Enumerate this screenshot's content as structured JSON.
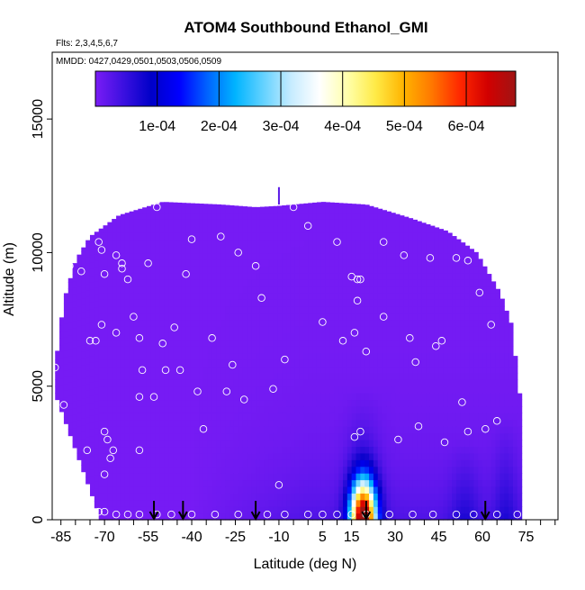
{
  "chart_data": {
    "type": "heatmap",
    "title": "ATOM4 Southbound Ethanol_GMI",
    "annotations": {
      "flights": "Flts: 2,3,4,5,6,7",
      "dates": "MMDD: 0427,0429,0501,0503,0506,0509"
    },
    "xlabel": "Latitude (deg N)",
    "ylabel": "Altitude (m)",
    "xlim": [
      -88,
      86
    ],
    "ylim": [
      0,
      17500
    ],
    "xticks": [
      -85,
      -70,
      -55,
      -40,
      -25,
      -10,
      5,
      15,
      30,
      45,
      60,
      75
    ],
    "xticklabels": [
      "-85",
      "-70",
      "-55",
      "-40",
      "-25",
      "-10",
      "5",
      "15",
      "30",
      "45",
      "60",
      "75"
    ],
    "yticks": [
      0,
      5000,
      10000,
      15000
    ],
    "yticklabels": [
      "0",
      "5000",
      "10000",
      "15000"
    ],
    "colorbar": {
      "range": [
        0,
        0.00068
      ],
      "ticks": [
        0.0001,
        0.0002,
        0.0003,
        0.0004,
        0.0005,
        0.0006
      ],
      "ticklabels": [
        "1e-04",
        "2e-04",
        "3e-04",
        "4e-04",
        "5e-04",
        "6e-04"
      ],
      "colors": [
        "#7a1cf5",
        "#3b10e0",
        "#0000c8",
        "#0000ff",
        "#0064ff",
        "#00b4ff",
        "#64d2ff",
        "#c8ecff",
        "#ffffff",
        "#ffffaa",
        "#ffea46",
        "#ffb400",
        "#ff7800",
        "#ff2800",
        "#d20000",
        "#a01414"
      ]
    },
    "domain": {
      "lat_min": -87,
      "lat_max": 73,
      "top_profile": [
        [
          -87,
          5700
        ],
        [
          -84,
          8200
        ],
        [
          -80,
          9700
        ],
        [
          -75,
          10600
        ],
        [
          -65,
          11400
        ],
        [
          -50,
          11900
        ],
        [
          -30,
          11800
        ],
        [
          -18,
          11700
        ],
        [
          -10,
          11750
        ],
        [
          5,
          11900
        ],
        [
          20,
          11800
        ],
        [
          35,
          11300
        ],
        [
          48,
          10800
        ],
        [
          58,
          10000
        ],
        [
          66,
          8500
        ],
        [
          70,
          7300
        ],
        [
          73,
          4500
        ]
      ],
      "bottom_lat_range": [
        -72,
        73
      ]
    },
    "hotspot": {
      "lat": 19,
      "alt": 0,
      "peak": 0.00068
    },
    "plumes": [
      {
        "lat": 19,
        "alt_top": 5000,
        "width": 12,
        "value": 5e-05
      },
      {
        "lat": 54,
        "alt_top": 3000,
        "width": 10,
        "value": 4e-05
      },
      {
        "lat": 68,
        "alt_top": 4000,
        "width": 8,
        "value": 4e-05
      }
    ],
    "background_value": 3e-06,
    "observations": [
      [
        -87,
        5700
      ],
      [
        -84,
        4300
      ],
      [
        -82,
        9500
      ],
      [
        -78,
        9300
      ],
      [
        -76,
        2600
      ],
      [
        -75,
        6700
      ],
      [
        -72,
        10400
      ],
      [
        -73,
        6700
      ],
      [
        -71,
        10100
      ],
      [
        -70,
        9200
      ],
      [
        -69,
        11400
      ],
      [
        -71,
        7300
      ],
      [
        -70,
        3300
      ],
      [
        -70,
        1700
      ],
      [
        -69,
        3000
      ],
      [
        -68,
        2300
      ],
      [
        -67,
        2600
      ],
      [
        -66,
        9900
      ],
      [
        -64,
        9600
      ],
      [
        -64,
        9400
      ],
      [
        -62,
        9000
      ],
      [
        -66,
        7000
      ],
      [
        -60,
        7600
      ],
      [
        -58,
        6800
      ],
      [
        -58,
        4600
      ],
      [
        -57,
        5600
      ],
      [
        -58,
        2600
      ],
      [
        -55,
        9600
      ],
      [
        -52,
        11700
      ],
      [
        -53,
        4600
      ],
      [
        -50,
        6600
      ],
      [
        -49,
        5600
      ],
      [
        -46,
        7200
      ],
      [
        -44,
        5600
      ],
      [
        -42,
        9200
      ],
      [
        -40,
        10500
      ],
      [
        -38,
        4800
      ],
      [
        -36,
        3400
      ],
      [
        -33,
        6800
      ],
      [
        -30,
        10600
      ],
      [
        -28,
        4800
      ],
      [
        -26,
        5800
      ],
      [
        -24,
        10000
      ],
      [
        -22,
        4500
      ],
      [
        -18,
        9500
      ],
      [
        -16,
        8300
      ],
      [
        -12,
        4900
      ],
      [
        -10,
        1300
      ],
      [
        -8,
        6000
      ],
      [
        -5,
        11700
      ],
      [
        0,
        11000
      ],
      [
        5,
        7400
      ],
      [
        10,
        10400
      ],
      [
        12,
        6700
      ],
      [
        15,
        9100
      ],
      [
        16,
        7000
      ],
      [
        17,
        9000
      ],
      [
        17,
        8200
      ],
      [
        18,
        9000
      ],
      [
        18,
        3300
      ],
      [
        16,
        3100
      ],
      [
        20,
        6300
      ],
      [
        26,
        7600
      ],
      [
        26,
        10400
      ],
      [
        29,
        11700
      ],
      [
        31,
        3000
      ],
      [
        33,
        9900
      ],
      [
        35,
        6800
      ],
      [
        37,
        5900
      ],
      [
        38,
        3500
      ],
      [
        42,
        9800
      ],
      [
        44,
        6500
      ],
      [
        46,
        6700
      ],
      [
        47,
        2900
      ],
      [
        51,
        9800
      ],
      [
        53,
        4400
      ],
      [
        55,
        9700
      ],
      [
        55,
        3300
      ],
      [
        59,
        8500
      ],
      [
        61,
        3400
      ],
      [
        63,
        7300
      ],
      [
        65,
        3700
      ],
      [
        -72,
        300
      ],
      [
        -70,
        300
      ],
      [
        -66,
        200
      ],
      [
        -62,
        200
      ],
      [
        -58,
        200
      ],
      [
        -52,
        200
      ],
      [
        -47,
        200
      ],
      [
        -40,
        200
      ],
      [
        -32,
        200
      ],
      [
        -24,
        200
      ],
      [
        -14,
        200
      ],
      [
        -8,
        200
      ],
      [
        0,
        200
      ],
      [
        5,
        200
      ],
      [
        10,
        200
      ],
      [
        15,
        200
      ],
      [
        20,
        200
      ],
      [
        28,
        200
      ],
      [
        36,
        200
      ],
      [
        43,
        200
      ],
      [
        51,
        200
      ],
      [
        57,
        200
      ],
      [
        65,
        200
      ],
      [
        72,
        200
      ]
    ],
    "launch_arrows": [
      -53,
      -43,
      -18,
      20,
      61
    ]
  }
}
